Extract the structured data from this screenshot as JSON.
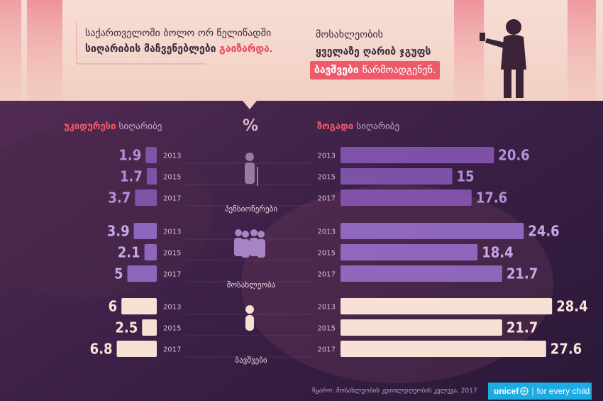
{
  "header": {
    "left_line1": "საქართველოში ბოლო ორ წელიწადში",
    "left_line2_bold": "სიღარიბის მაჩვენებლები",
    "left_line2_red": "გაიზარდა",
    "left_line2_end": ".",
    "right_line1": "მოსახლეობის",
    "right_line2": "ყველაზე ღარიბ ჯგუფს",
    "right_line3_bold": "ბავშვები",
    "right_line3_rest": "წარმოადგენენ."
  },
  "columns": {
    "left_hl": "უკიდურესი",
    "left_rest": "სიღარიბე",
    "center": "%",
    "right_hl": "ზოგადი",
    "right_rest": "სიღარიბე"
  },
  "chart_data": {
    "type": "bar",
    "years": [
      "2013",
      "2015",
      "2017"
    ],
    "groups": [
      {
        "label": "პენსიონერები",
        "icon": "elderly-person-icon",
        "color": "#8a5bb8",
        "extreme_poverty": [
          1.9,
          1.7,
          3.7
        ],
        "general_poverty": [
          20.6,
          15,
          17.6
        ]
      },
      {
        "label": "მოსახლეობა",
        "icon": "population-group-icon",
        "color": "#9b72d0",
        "extreme_poverty": [
          3.9,
          2.1,
          5
        ],
        "general_poverty": [
          24.6,
          18.4,
          21.7
        ]
      },
      {
        "label": "ბავშვები",
        "icon": "child-icon",
        "color": "#f6dccf",
        "extreme_poverty": [
          6,
          2.5,
          6.8
        ],
        "general_poverty": [
          28.4,
          21.7,
          27.6
        ]
      }
    ]
  },
  "footer": {
    "source": "წყარო: მოსახლეობის კეთილდღეობის კვლევა, 2017",
    "unicef_brand": "unicef",
    "unicef_logo": "unicef-globe-icon",
    "unicef_tagline": "for every child"
  }
}
